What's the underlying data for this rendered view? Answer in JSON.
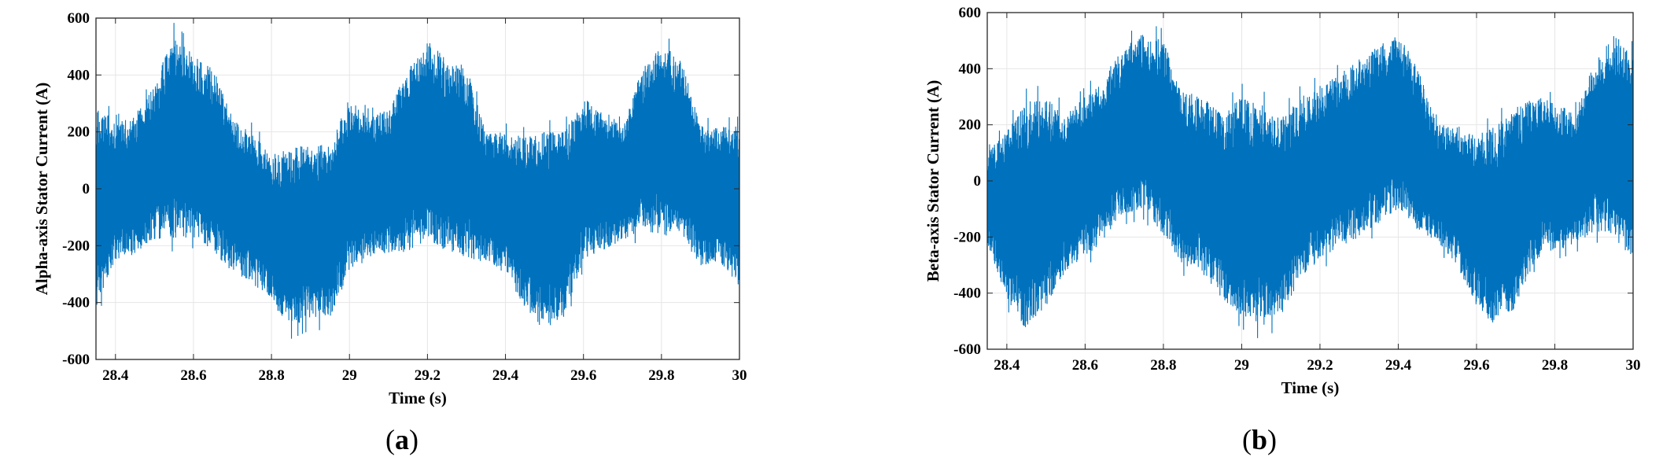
{
  "chart_data": [
    {
      "type": "line",
      "panel_label": "a",
      "xlabel": "Time (s)",
      "ylabel": "Alpha-axis  Stator Current (A)",
      "xlim": [
        28.35,
        30
      ],
      "ylim": [
        -600,
        600
      ],
      "xticks": [
        28.4,
        28.6,
        28.8,
        29,
        29.2,
        29.4,
        29.6,
        29.8,
        30
      ],
      "xtick_labels": [
        "28.4",
        "28.6",
        "28.8",
        "29",
        "29.2",
        "29.4",
        "29.6",
        "29.8",
        "30"
      ],
      "yticks": [
        -600,
        -400,
        -200,
        0,
        200,
        400,
        600
      ],
      "ytick_labels": [
        "-600",
        "-400",
        "-200",
        "0",
        "200",
        "400",
        "600"
      ],
      "grid": true,
      "color": "#0072BD",
      "series": [
        {
          "x": [
            28.35,
            28.4,
            28.45,
            28.5,
            28.53,
            28.55,
            28.6,
            28.65,
            28.7,
            28.75,
            28.8,
            28.85,
            28.9,
            28.95,
            29.0,
            29.05,
            29.1,
            29.15,
            29.2,
            29.25,
            29.3,
            29.35,
            29.4,
            29.45,
            29.5,
            29.55,
            29.6,
            29.65,
            29.7,
            29.75,
            29.8,
            29.85,
            29.9,
            29.95,
            30.0
          ],
          "upper": [
            310,
            230,
            260,
            360,
            480,
            540,
            470,
            430,
            250,
            200,
            120,
            140,
            160,
            150,
            320,
            250,
            280,
            420,
            520,
            460,
            430,
            200,
            200,
            180,
            200,
            200,
            320,
            280,
            220,
            420,
            500,
            470,
            220,
            220,
            220
          ],
          "lower": [
            -420,
            -250,
            -230,
            -180,
            -170,
            -180,
            -170,
            -220,
            -300,
            -330,
            -400,
            -490,
            -460,
            -460,
            -300,
            -240,
            -230,
            -230,
            -180,
            -220,
            -240,
            -260,
            -300,
            -420,
            -500,
            -450,
            -250,
            -220,
            -180,
            -150,
            -160,
            -180,
            -270,
            -260,
            -350
          ]
        }
      ]
    },
    {
      "type": "line",
      "panel_label": "b",
      "xlabel": "Time (s)",
      "ylabel": "Beta-axis Stator Current (A)",
      "xlim": [
        28.35,
        30
      ],
      "ylim": [
        -600,
        600
      ],
      "xticks": [
        28.4,
        28.6,
        28.8,
        29,
        29.2,
        29.4,
        29.6,
        29.8,
        30
      ],
      "xtick_labels": [
        "28.4",
        "28.6",
        "28.8",
        "29",
        "29.2",
        "29.4",
        "29.6",
        "29.8",
        "30"
      ],
      "yticks": [
        -600,
        -400,
        -200,
        0,
        200,
        400,
        600
      ],
      "ytick_labels": [
        "-600",
        "-400",
        "-200",
        "0",
        "200",
        "400",
        "600"
      ],
      "grid": true,
      "color": "#0072BD",
      "series": [
        {
          "x": [
            28.35,
            28.4,
            28.45,
            28.5,
            28.55,
            28.6,
            28.65,
            28.7,
            28.75,
            28.8,
            28.85,
            28.9,
            28.95,
            29.0,
            29.05,
            29.1,
            29.15,
            29.2,
            29.25,
            29.3,
            29.35,
            29.4,
            29.45,
            29.5,
            29.55,
            29.6,
            29.65,
            29.7,
            29.75,
            29.8,
            29.85,
            29.9,
            29.95,
            30.0
          ],
          "upper": [
            100,
            180,
            280,
            300,
            240,
            300,
            380,
            480,
            530,
            500,
            320,
            300,
            240,
            300,
            280,
            220,
            300,
            340,
            380,
            440,
            480,
            530,
            400,
            200,
            200,
            160,
            200,
            260,
            300,
            280,
            240,
            420,
            530,
            450
          ],
          "lower": [
            -220,
            -420,
            -540,
            -450,
            -320,
            -270,
            -220,
            -120,
            -100,
            -200,
            -300,
            -330,
            -420,
            -480,
            -520,
            -480,
            -350,
            -280,
            -240,
            -200,
            -150,
            -100,
            -180,
            -220,
            -300,
            -450,
            -520,
            -450,
            -280,
            -250,
            -230,
            -180,
            -200,
            -280
          ]
        }
      ]
    }
  ]
}
